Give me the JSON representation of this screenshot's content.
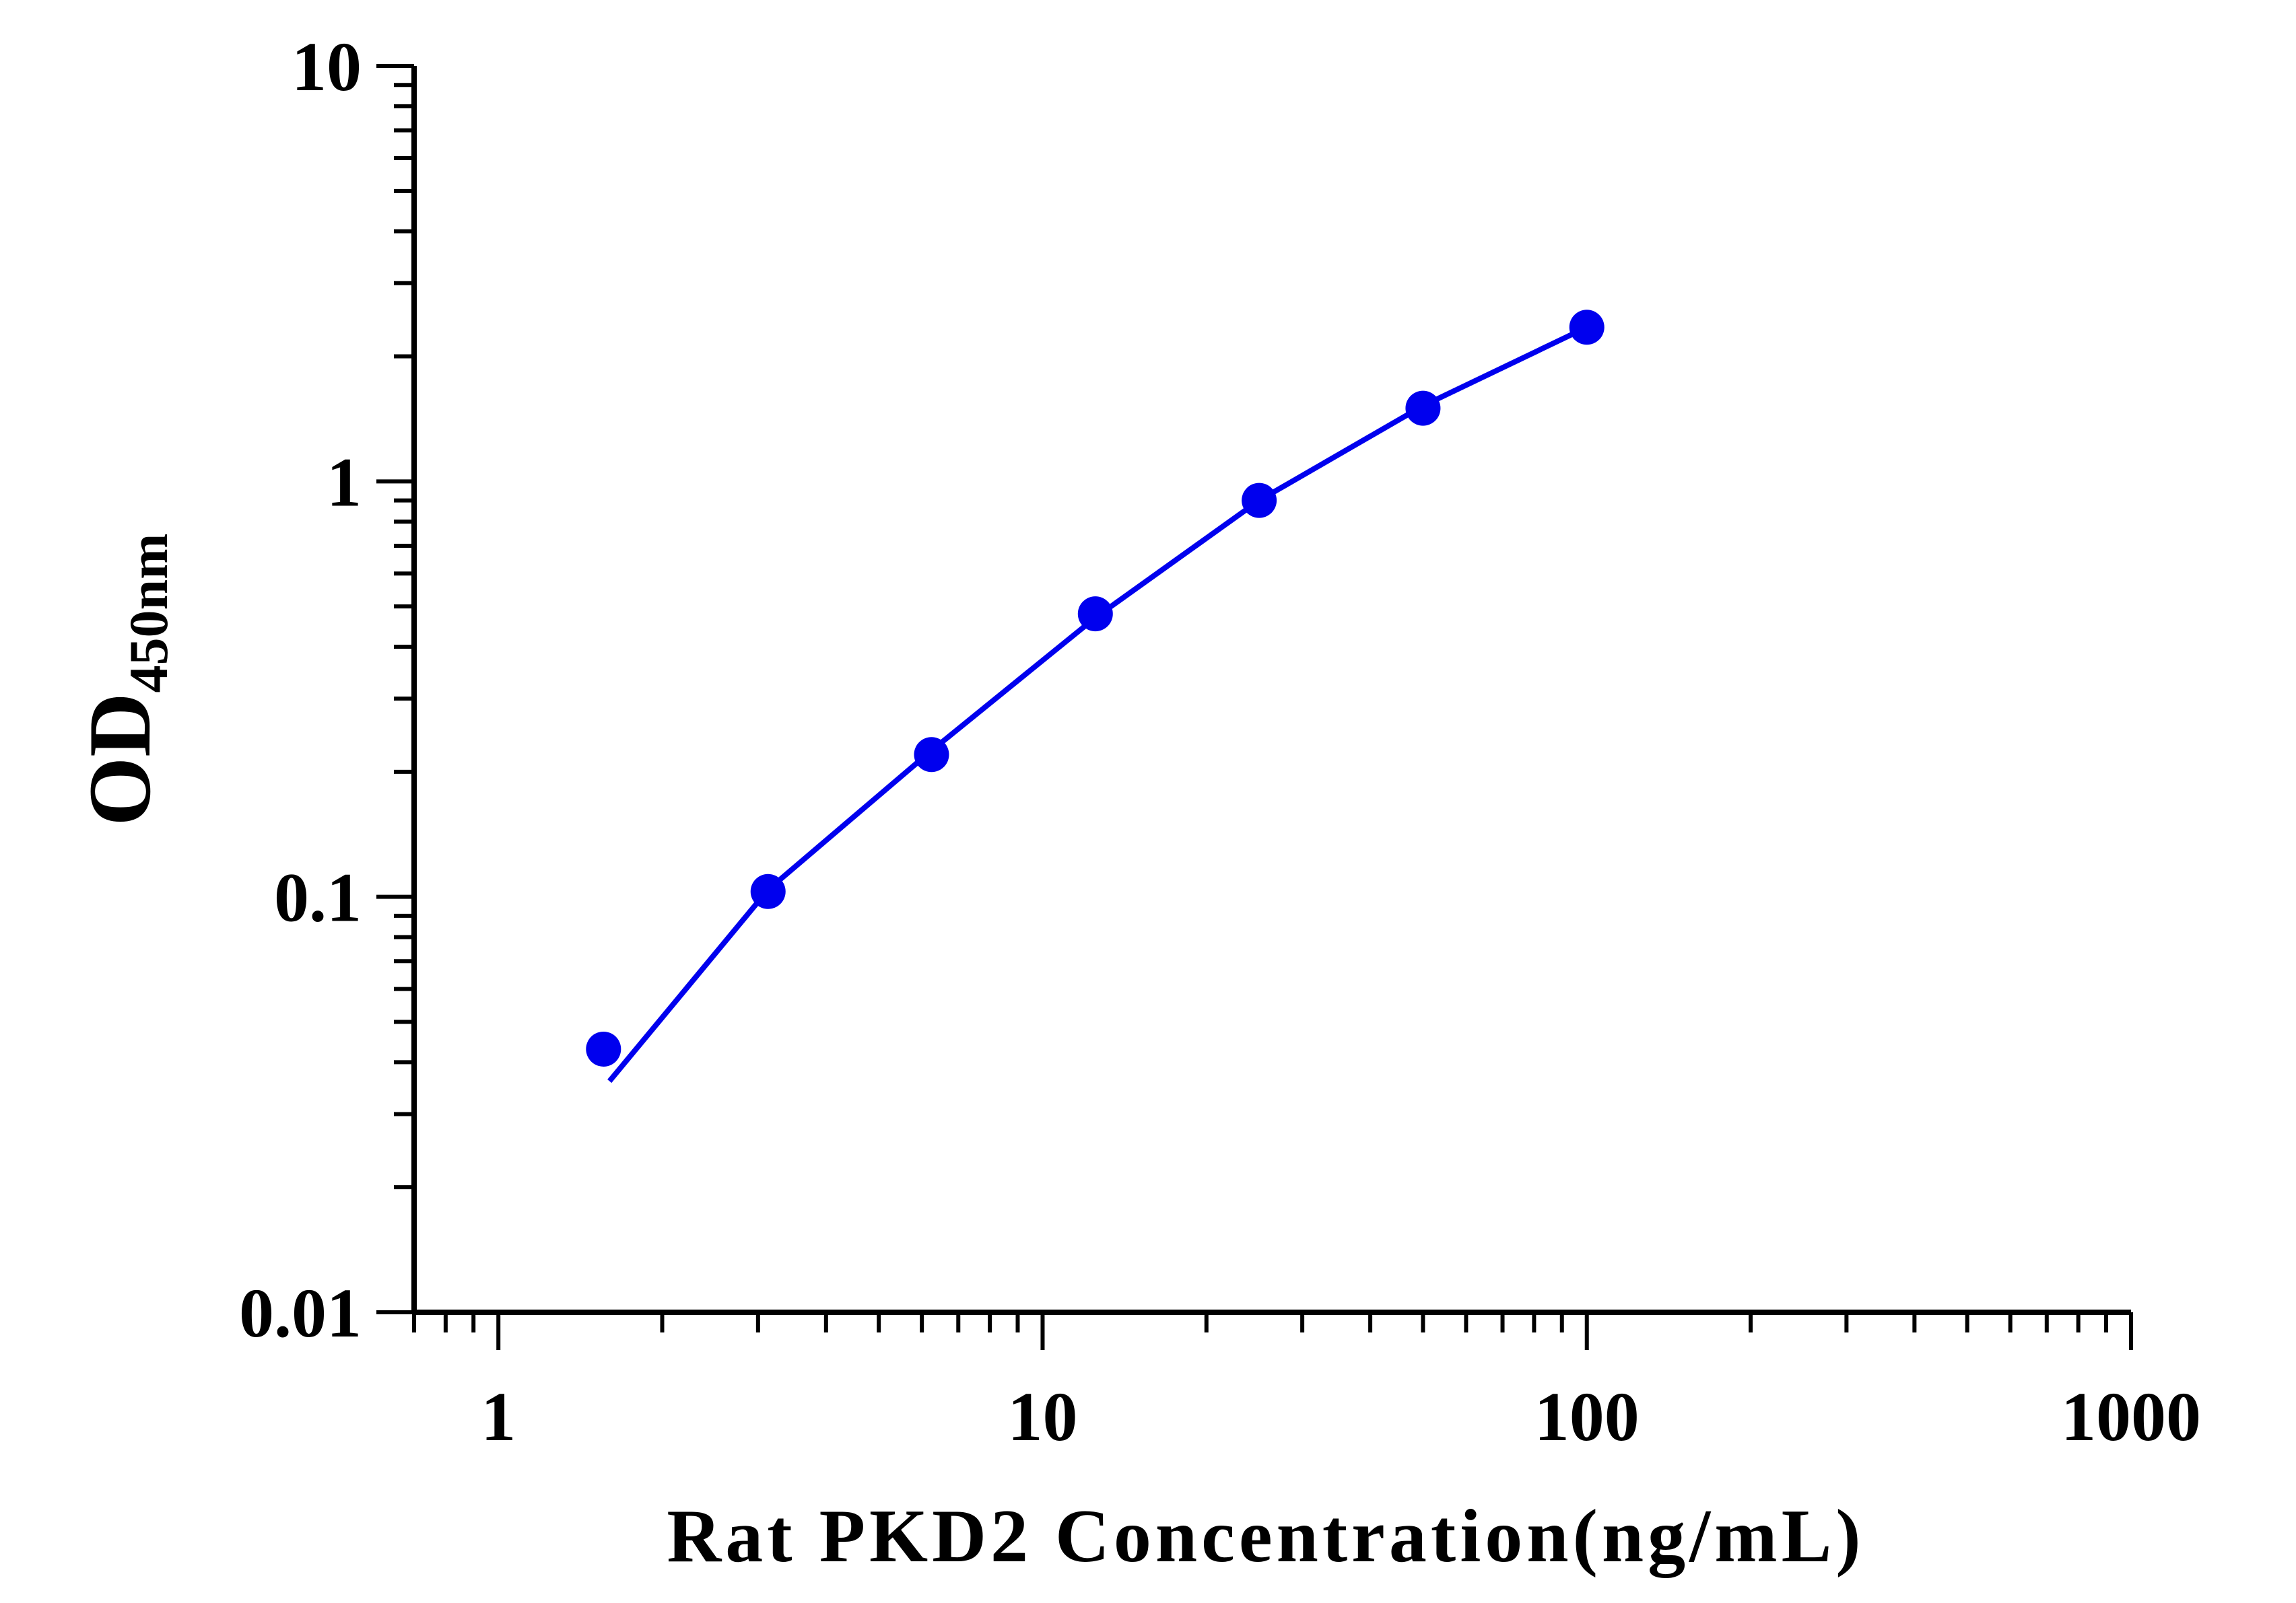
{
  "chart_data": {
    "type": "scatter",
    "x_scale": "log",
    "y_scale": "log",
    "xlim": [
      0.7,
      1000
    ],
    "ylim": [
      0.01,
      10
    ],
    "x_tick_labels": [
      "1",
      "10",
      "100",
      "1000"
    ],
    "y_tick_labels": [
      "0.01",
      "0.1",
      "1",
      "10"
    ],
    "xlabel": "Rat PKD2 Concentration(ng/mL)",
    "ylabel_main": "OD",
    "ylabel_sub": "450nm",
    "grid": false,
    "color": "#0000ee",
    "points": [
      {
        "x": 1.56,
        "y": 0.043
      },
      {
        "x": 3.13,
        "y": 0.103
      },
      {
        "x": 6.25,
        "y": 0.22
      },
      {
        "x": 12.5,
        "y": 0.48
      },
      {
        "x": 25,
        "y": 0.9
      },
      {
        "x": 50,
        "y": 1.5
      },
      {
        "x": 100,
        "y": 2.35
      }
    ],
    "fit_curve": [
      {
        "x": 1.6,
        "y": 0.036
      },
      {
        "x": 3.13,
        "y": 0.104
      },
      {
        "x": 6.25,
        "y": 0.225
      },
      {
        "x": 12.5,
        "y": 0.47
      },
      {
        "x": 25,
        "y": 0.9
      },
      {
        "x": 50,
        "y": 1.52
      },
      {
        "x": 100,
        "y": 2.35
      }
    ]
  }
}
